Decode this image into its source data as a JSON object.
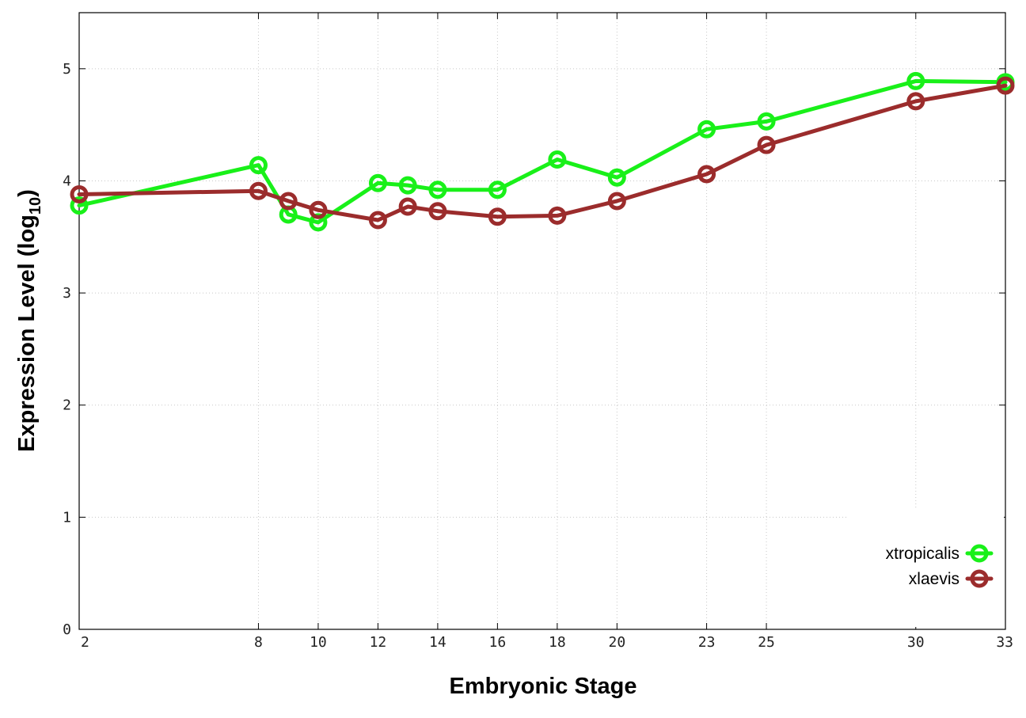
{
  "chart_data": {
    "type": "line",
    "xlabel": "Embryonic Stage",
    "ylabel": "Expression Level (log",
    "ylabel_sub": "10",
    "ylabel_end": ")",
    "x": [
      2,
      8,
      9,
      10,
      12,
      13,
      14,
      16,
      18,
      20,
      23,
      25,
      30,
      33
    ],
    "xticks": [
      "2",
      "8",
      "10",
      "12",
      "14",
      "16",
      "18",
      "20",
      "23",
      "25",
      "30",
      "33"
    ],
    "yticks": [
      "0",
      "1",
      "2",
      "3",
      "4",
      "5"
    ],
    "xlim": [
      2,
      33
    ],
    "ylim": [
      0,
      5.5
    ],
    "grid": true,
    "legend_position": "bottom-right",
    "series": [
      {
        "name": "xtropicalis",
        "color": "#19f019",
        "values": [
          3.78,
          4.14,
          3.7,
          3.63,
          3.98,
          3.96,
          3.92,
          3.92,
          4.19,
          4.03,
          4.46,
          4.53,
          4.89,
          4.88
        ]
      },
      {
        "name": "xlaevis",
        "color": "#9b2c2c",
        "values": [
          3.88,
          3.91,
          3.82,
          3.74,
          3.65,
          3.77,
          3.73,
          3.68,
          3.69,
          3.82,
          4.06,
          4.32,
          4.71,
          4.85
        ]
      }
    ]
  }
}
